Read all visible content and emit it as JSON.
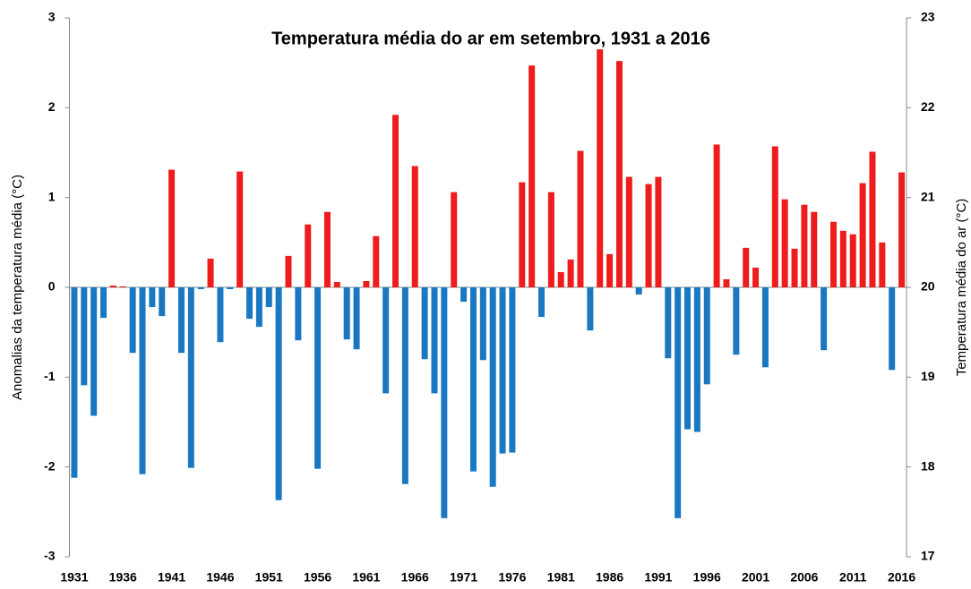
{
  "chart_data": {
    "type": "bar",
    "title": "Temperatura média do ar em setembro, 1931 a 2016",
    "y_label": "Anomalias da temperatura média (°C)",
    "y2_label": "Temperatura média do ar (°C)",
    "categories": [
      "1931",
      null,
      null,
      null,
      null,
      "1936",
      null,
      null,
      null,
      null,
      "1941",
      null,
      null,
      null,
      null,
      "1946",
      null,
      null,
      null,
      null,
      "1951",
      null,
      null,
      null,
      null,
      "1956",
      null,
      null,
      null,
      null,
      "1961",
      null,
      null,
      null,
      null,
      "1966",
      null,
      null,
      null,
      null,
      "1971",
      null,
      null,
      null,
      null,
      "1976",
      null,
      null,
      null,
      null,
      "1981",
      null,
      null,
      null,
      null,
      "1986",
      null,
      null,
      null,
      null,
      "1991",
      null,
      null,
      null,
      null,
      "1996",
      null,
      null,
      null,
      null,
      "2001",
      null,
      null,
      null,
      null,
      "2006",
      null,
      null,
      null,
      null,
      "2011",
      null,
      null,
      null,
      null,
      "2016"
    ],
    "values": [
      -2.12,
      -1.09,
      -1.43,
      -0.34,
      0.02,
      0.01,
      -0.73,
      -2.08,
      -0.22,
      -0.32,
      1.31,
      -0.73,
      -2.01,
      -0.02,
      0.32,
      -0.61,
      -0.02,
      1.29,
      -0.35,
      -0.44,
      -0.22,
      -2.37,
      0.35,
      -0.59,
      0.7,
      -2.02,
      0.84,
      0.06,
      -0.58,
      -0.69,
      0.07,
      0.57,
      -1.18,
      1.92,
      -2.19,
      1.35,
      -0.8,
      -1.18,
      -2.57,
      1.06,
      -0.16,
      -2.05,
      -0.81,
      -2.22,
      -1.85,
      -1.84,
      1.17,
      2.47,
      -0.33,
      1.06,
      0.17,
      0.31,
      1.52,
      -0.48,
      2.65,
      0.37,
      2.52,
      1.23,
      -0.08,
      1.15,
      1.23,
      -0.79,
      -2.57,
      -1.58,
      -1.61,
      -1.08,
      1.59,
      0.09,
      -0.75,
      0.44,
      0.22,
      -0.89,
      1.57,
      0.98,
      0.43,
      0.92,
      0.84,
      -0.7,
      0.73,
      0.63,
      0.59,
      1.16,
      1.51,
      0.5,
      -0.92,
      1.28
    ],
    "positive_color": "#ee1c1c",
    "negative_color": "#1a78c2",
    "ylim": [
      -3,
      3
    ],
    "yticks": [
      -3,
      -2,
      -1,
      0,
      1,
      2,
      3
    ],
    "y2lim": [
      17,
      23
    ],
    "y2ticks": [
      17,
      18,
      19,
      20,
      21,
      22,
      23
    ],
    "grid": false
  }
}
